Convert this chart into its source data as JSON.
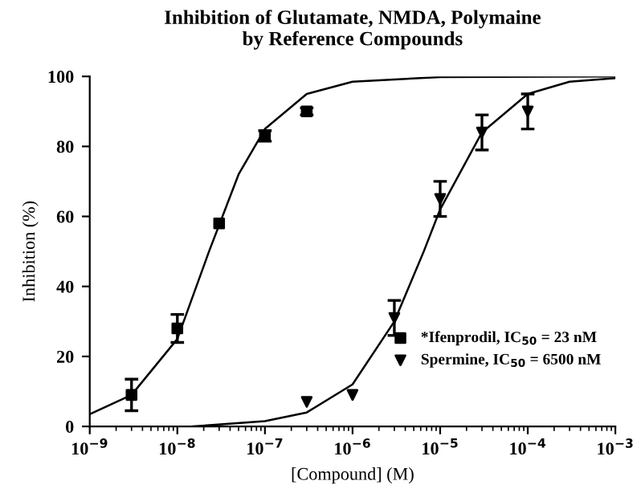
{
  "chart_data": {
    "type": "scatter",
    "title": "Inhibition of Glutamate, NMDA, Polymaine\nby Reference Compounds",
    "xlabel": "[Compound] (M)",
    "ylabel": "Inhibition (%)",
    "log": "x",
    "xlim": [
      1e-09,
      0.001
    ],
    "xticks": [
      {
        "value": 1e-09,
        "label": "10$^{−9}$"
      },
      {
        "value": 1e-08,
        "label": "10$^{−8}$"
      },
      {
        "value": 1e-07,
        "label": "10$^{−7}$"
      },
      {
        "value": 1e-06,
        "label": "10$^{−6}$"
      },
      {
        "value": 1e-05,
        "label": "10$^{−5}$"
      },
      {
        "value": 0.0001,
        "label": "10$^{−4}$"
      },
      {
        "value": 0.001,
        "label": "10$^{−3}$"
      }
    ],
    "ylim": [
      0,
      100
    ],
    "yticks": [
      0,
      20,
      40,
      60,
      80,
      100
    ],
    "grid": false,
    "legend": "right",
    "series": [
      {
        "name": "*Ifenprodil, IC$_{50}$ = 23 nM",
        "color": "#000000",
        "marker": "square",
        "x": [
          3e-09,
          1e-08,
          3e-08,
          1e-07,
          3e-07
        ],
        "values": [
          9,
          28,
          58,
          83,
          90
        ],
        "errors": [
          4.5,
          4,
          null,
          1.5,
          1
        ]
      },
      {
        "name": "Spermine, IC$_{50}$ = 6500 nM",
        "color": "#000000",
        "marker": "triangle",
        "x": [
          3e-07,
          1e-06,
          3e-06,
          1e-05,
          3e-05,
          0.0001
        ],
        "values": [
          7,
          9,
          31,
          65,
          84,
          90
        ],
        "errors": [
          null,
          null,
          5,
          5,
          5,
          5
        ]
      },
      {
        "type": "line",
        "color": "#000000",
        "marker": "none",
        "x": [
          1e-09,
          3e-09,
          1e-08,
          2.3e-08,
          5e-08,
          1e-07,
          3e-07,
          1e-06,
          1e-05,
          0.001
        ],
        "values": [
          3.5,
          9,
          25,
          50,
          72,
          85,
          95,
          98.5,
          99.8,
          100
        ]
      },
      {
        "type": "line",
        "color": "#000000",
        "marker": "none",
        "x": [
          1.5e-08,
          1e-07,
          3e-07,
          1e-06,
          3e-06,
          6.5e-06,
          1e-05,
          3e-05,
          0.0001,
          0.0003,
          0.001
        ],
        "values": [
          0,
          1.5,
          4,
          12,
          30,
          50,
          62,
          84,
          95,
          98.5,
          99.5
        ]
      }
    ]
  }
}
